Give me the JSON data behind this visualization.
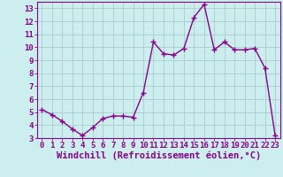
{
  "x": [
    0,
    1,
    2,
    3,
    4,
    5,
    6,
    7,
    8,
    9,
    10,
    11,
    12,
    13,
    14,
    15,
    16,
    17,
    18,
    19,
    20,
    21,
    22,
    23
  ],
  "y": [
    5.2,
    4.8,
    4.3,
    3.7,
    3.2,
    3.8,
    4.5,
    4.7,
    4.7,
    4.6,
    6.5,
    10.4,
    9.5,
    9.4,
    9.9,
    12.3,
    13.3,
    9.8,
    10.4,
    9.8,
    9.8,
    9.9,
    8.4,
    3.2
  ],
  "line_color": "#880088",
  "marker": "+",
  "marker_size": 4,
  "bg_color": "#cceeee",
  "grid_color": "#aacccc",
  "xlabel": "Windchill (Refroidissement éolien,°C)",
  "xlim": [
    -0.5,
    23.5
  ],
  "ylim": [
    3,
    13.5
  ],
  "yticks": [
    3,
    4,
    5,
    6,
    7,
    8,
    9,
    10,
    11,
    12,
    13
  ],
  "xticks": [
    0,
    1,
    2,
    3,
    4,
    5,
    6,
    7,
    8,
    9,
    10,
    11,
    12,
    13,
    14,
    15,
    16,
    17,
    18,
    19,
    20,
    21,
    22,
    23
  ],
  "tick_label_color": "#880088",
  "axis_color": "#880088",
  "xlabel_color": "#880088",
  "xlabel_fontsize": 7.5,
  "tick_fontsize": 6.5,
  "line_width": 1.0,
  "marker_edge_width": 1.0
}
